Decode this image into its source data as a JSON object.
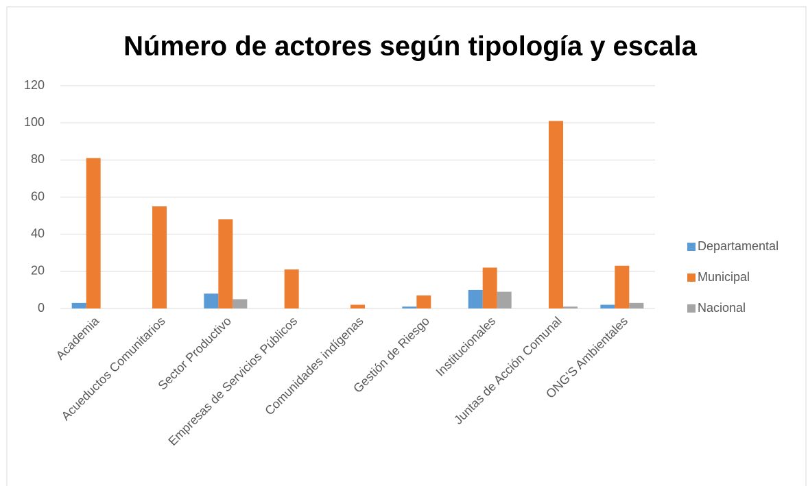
{
  "chart_data": {
    "type": "bar",
    "title": "Número de actores según tipología y escala",
    "categories": [
      "Academia",
      "Acueductos Comunitarios",
      "Sector Productivo",
      "Empresas de Servicios Públicos",
      "Comunidades indígenas",
      "Gestión de Riesgo",
      "Institucionales",
      "Juntas de Acción Comunal",
      "ONG'S Ambientales"
    ],
    "series": [
      {
        "name": "Departamental",
        "color": "#5b9bd5",
        "values": [
          3,
          0,
          8,
          0,
          0,
          1,
          10,
          0,
          2
        ]
      },
      {
        "name": "Municipal",
        "color": "#ed7d31",
        "values": [
          81,
          55,
          48,
          21,
          2,
          7,
          22,
          101,
          23
        ]
      },
      {
        "name": "Nacional",
        "color": "#a5a5a5",
        "values": [
          0,
          0,
          5,
          0,
          0,
          0,
          9,
          1,
          3
        ]
      }
    ],
    "ylim": [
      0,
      120
    ],
    "yticks": [
      0,
      20,
      40,
      60,
      80,
      100,
      120
    ],
    "grid": true,
    "legend": "right"
  }
}
